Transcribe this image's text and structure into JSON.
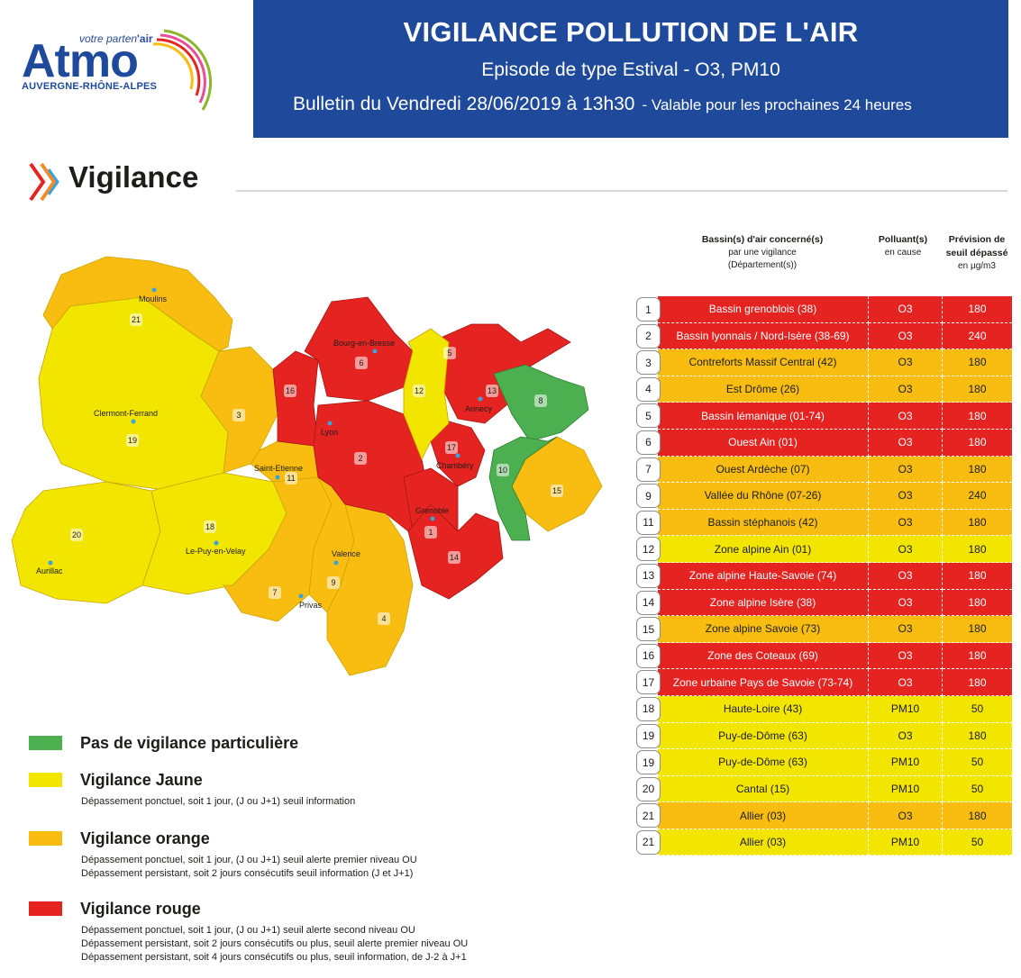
{
  "colors": {
    "brand_blue": "#1f4a9c",
    "green": "#4caf50",
    "yellow": "#f2e500",
    "orange": "#f8bd10",
    "red": "#e52421"
  },
  "logo": {
    "tagline_prefix": "votre parten",
    "tagline_bold": "'air",
    "word": "Atmo",
    "region": "AUVERGNE-RHÔNE-ALPES"
  },
  "header": {
    "title": "VIGILANCE POLLUTION DE L'AIR",
    "episode": "Episode de type Estival - O3, PM10",
    "bulletin": "Bulletin du Vendredi 28/06/2019 à 13h30",
    "validity": "- Valable pour les prochaines 24 heures"
  },
  "section": {
    "title": "Vigilance",
    "icon": "double-chevron-icon"
  },
  "map": {
    "cities": [
      "Moulins",
      "Clermont-Ferrand",
      "Aurillac",
      "Le-Puy-en-Velay",
      "Saint-Etienne",
      "Lyon",
      "Bourg-en-Bresse",
      "Annecy",
      "Chambéry",
      "Grenoble",
      "Valence",
      "Privas"
    ],
    "zone_numbers": [
      "21",
      "19",
      "20",
      "18",
      "3",
      "11",
      "16",
      "2",
      "6",
      "12",
      "5",
      "13",
      "8",
      "17",
      "10",
      "15",
      "1",
      "14",
      "9",
      "7",
      "4"
    ]
  },
  "legend": [
    {
      "title": "Pas de vigilance particulière",
      "color": "#4caf50",
      "lines": []
    },
    {
      "title": "Vigilance Jaune",
      "color": "#f2e500",
      "lines": [
        "Dépassement ponctuel, soit 1 jour, (J ou J+1) seuil information"
      ]
    },
    {
      "title": "Vigilance orange",
      "color": "#f8bd10",
      "lines": [
        "Dépassement ponctuel, soit 1 jour, (J ou J+1) seuil alerte premier niveau OU",
        "Dépassement persistant, soit 2 jours consécutifs seuil information (J et J+1)"
      ]
    },
    {
      "title": "Vigilance rouge",
      "color": "#e52421",
      "lines": [
        "Dépassement ponctuel, soit 1 jour, (J ou J+1) seuil alerte second niveau OU",
        "Dépassement persistant, soit 2 jours consécutifs ou plus, seuil alerte premier niveau OU",
        "Dépassement persistant, soit 4 jours consécutifs ou plus, seuil information, de J-2 à J+1"
      ]
    }
  ],
  "table_header": {
    "col1_bold": "Bassin(s) d'air concerné(s)",
    "col1_l2": "par une vigilance",
    "col1_l3": "(Département(s))",
    "col2_bold": "Polluant(s)",
    "col2_l2": "en cause",
    "col3_bold_l1": "Prévision de",
    "col3_bold_l2": "seuil dépassé",
    "col3_l3": "en µg/m3"
  },
  "table_rows": [
    {
      "num": "1",
      "name": "Bassin grenoblois (38)",
      "pollutant": "O3",
      "value": "180",
      "level": "red"
    },
    {
      "num": "2",
      "name": "Bassin lyonnais / Nord-Isère (38-69)",
      "pollutant": "O3",
      "value": "240",
      "level": "red"
    },
    {
      "num": "3",
      "name": "Contreforts Massif Central (42)",
      "pollutant": "O3",
      "value": "180",
      "level": "orange"
    },
    {
      "num": "4",
      "name": "Est Drôme (26)",
      "pollutant": "O3",
      "value": "180",
      "level": "orange"
    },
    {
      "num": "5",
      "name": "Bassin lémanique (01-74)",
      "pollutant": "O3",
      "value": "180",
      "level": "red"
    },
    {
      "num": "6",
      "name": "Ouest Ain (01)",
      "pollutant": "O3",
      "value": "180",
      "level": "red"
    },
    {
      "num": "7",
      "name": "Ouest Ardèche (07)",
      "pollutant": "O3",
      "value": "180",
      "level": "orange"
    },
    {
      "num": "9",
      "name": "Vallée du Rhône (07-26)",
      "pollutant": "O3",
      "value": "240",
      "level": "orange"
    },
    {
      "num": "11",
      "name": "Bassin stéphanois (42)",
      "pollutant": "O3",
      "value": "180",
      "level": "orange"
    },
    {
      "num": "12",
      "name": "Zone alpine Ain (01)",
      "pollutant": "O3",
      "value": "180",
      "level": "yellow"
    },
    {
      "num": "13",
      "name": "Zone alpine Haute-Savoie (74)",
      "pollutant": "O3",
      "value": "180",
      "level": "red"
    },
    {
      "num": "14",
      "name": "Zone alpine Isère (38)",
      "pollutant": "O3",
      "value": "180",
      "level": "red"
    },
    {
      "num": "15",
      "name": "Zone alpine Savoie (73)",
      "pollutant": "O3",
      "value": "180",
      "level": "orange"
    },
    {
      "num": "16",
      "name": "Zone des Coteaux (69)",
      "pollutant": "O3",
      "value": "180",
      "level": "red"
    },
    {
      "num": "17",
      "name": "Zone urbaine Pays de Savoie (73-74)",
      "pollutant": "O3",
      "value": "180",
      "level": "red"
    },
    {
      "num": "18",
      "name": "Haute-Loire (43)",
      "pollutant": "PM10",
      "value": "50",
      "level": "yellow"
    },
    {
      "num": "19",
      "name": "Puy-de-Dôme (63)",
      "pollutant": "O3",
      "value": "180",
      "level": "yellow"
    },
    {
      "num": "19",
      "name": "Puy-de-Dôme (63)",
      "pollutant": "PM10",
      "value": "50",
      "level": "yellow"
    },
    {
      "num": "20",
      "name": "Cantal (15)",
      "pollutant": "PM10",
      "value": "50",
      "level": "yellow"
    },
    {
      "num": "21",
      "name": "Allier (03)",
      "pollutant": "O3",
      "value": "180",
      "level": "orange"
    },
    {
      "num": "21",
      "name": "Allier (03)",
      "pollutant": "PM10",
      "value": "50",
      "level": "yellow"
    }
  ]
}
